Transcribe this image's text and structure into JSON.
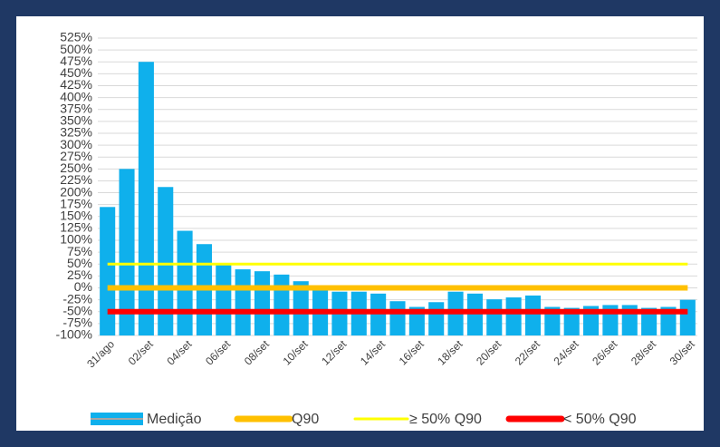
{
  "chart_data": {
    "type": "bar",
    "categories": [
      "31/ago",
      null,
      "02/set",
      null,
      "04/set",
      null,
      "06/set",
      null,
      "08/set",
      null,
      "10/set",
      null,
      "12/set",
      null,
      "14/set",
      null,
      "16/set",
      null,
      "18/set",
      null,
      "20/set",
      null,
      "22/set",
      null,
      "24/set",
      null,
      "26/set",
      null,
      "28/set",
      null,
      "30/set"
    ],
    "series": [
      {
        "name": "Medição",
        "color": "#0fb0ec",
        "values": [
          170,
          250,
          475,
          212,
          120,
          92,
          52,
          39,
          35,
          28,
          14,
          -5,
          -8,
          -8,
          -12,
          -28,
          -40,
          -30,
          -8,
          -12,
          -24,
          -20,
          -16,
          -40,
          -42,
          -38,
          -36,
          -36,
          -42,
          -40,
          -25
        ]
      }
    ],
    "lines": [
      {
        "name": "Q90",
        "color": "#ffc000",
        "value": 0
      },
      {
        "name": "≥ 50% Q90",
        "color": "#ffff00",
        "value": 50
      },
      {
        "name": "< 50% Q90",
        "color": "#ff0000",
        "value": -50
      }
    ],
    "ylim": [
      -100,
      525
    ],
    "yticks": [
      {
        "value": -100,
        "label": "-100%"
      },
      {
        "value": -75,
        "label": "-75%"
      },
      {
        "value": -50,
        "label": "-50%"
      },
      {
        "value": -25,
        "label": "-25%"
      },
      {
        "value": 0,
        "label": "0%"
      },
      {
        "value": 25,
        "label": "25%"
      },
      {
        "value": 50,
        "label": "50%"
      },
      {
        "value": 75,
        "label": "75%"
      },
      {
        "value": 100,
        "label": "100%"
      },
      {
        "value": 125,
        "label": "125%"
      },
      {
        "value": 150,
        "label": "150%"
      },
      {
        "value": 175,
        "label": "175%"
      },
      {
        "value": 200,
        "label": "200%"
      },
      {
        "value": 225,
        "label": "225%"
      },
      {
        "value": 250,
        "label": "250%"
      },
      {
        "value": 275,
        "label": "275%"
      },
      {
        "value": 300,
        "label": "300%"
      },
      {
        "value": 325,
        "label": "325%"
      },
      {
        "value": 350,
        "label": "350%"
      },
      {
        "value": 375,
        "label": "375%"
      },
      {
        "value": 400,
        "label": "400%"
      },
      {
        "value": 425,
        "label": "425%"
      },
      {
        "value": 450,
        "label": "450%"
      },
      {
        "value": 475,
        "label": "475%"
      },
      {
        "value": 500,
        "label": "500%"
      },
      {
        "value": 525,
        "label": "525%"
      }
    ],
    "grid": true
  }
}
